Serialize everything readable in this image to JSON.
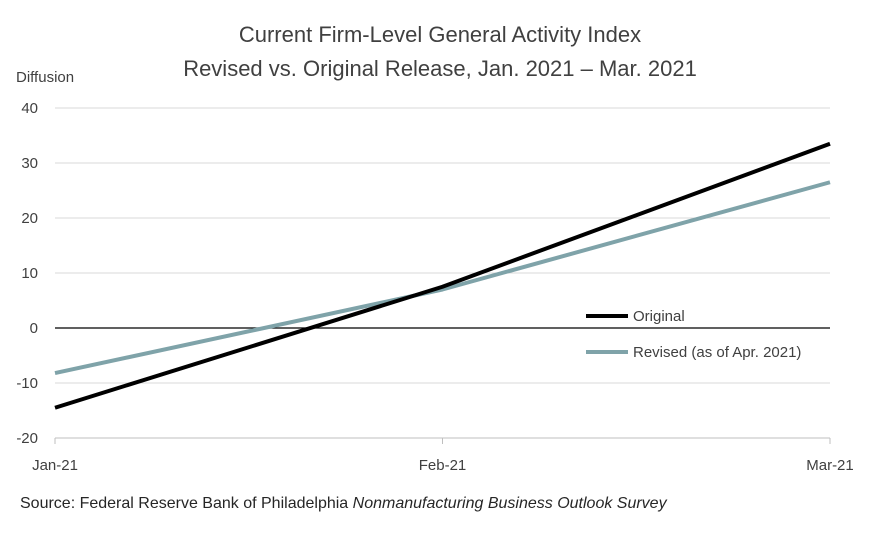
{
  "chart_data": {
    "type": "line",
    "title": "Current Firm-Level General Activity Index",
    "subtitle": "Revised vs. Original Release, Jan. 2021 – Mar. 2021",
    "ylabel": "Diffusion",
    "xlabel": "",
    "categories": [
      "Jan-21",
      "Feb-21",
      "Mar-21"
    ],
    "ylim": [
      -20,
      40
    ],
    "yticks": [
      -20,
      -10,
      0,
      10,
      20,
      30,
      40
    ],
    "grid": true,
    "legend_position": "right-middle",
    "series": [
      {
        "name": "Original",
        "color": "#000000",
        "values": [
          -14.5,
          7.5,
          33.5
        ]
      },
      {
        "name": "Revised (as of Apr. 2021)",
        "color": "#7fa3a9",
        "values": [
          -8.2,
          7.0,
          26.5
        ]
      }
    ]
  },
  "source": {
    "prefix": "Source: Federal Reserve Bank of Philadelphia ",
    "italic": "Nonmanufacturing Business Outlook Survey"
  },
  "colors": {
    "grid": "#d9d9d9",
    "zero_line": "#000000",
    "axis": "#bfbfbf",
    "text": "#404040"
  }
}
